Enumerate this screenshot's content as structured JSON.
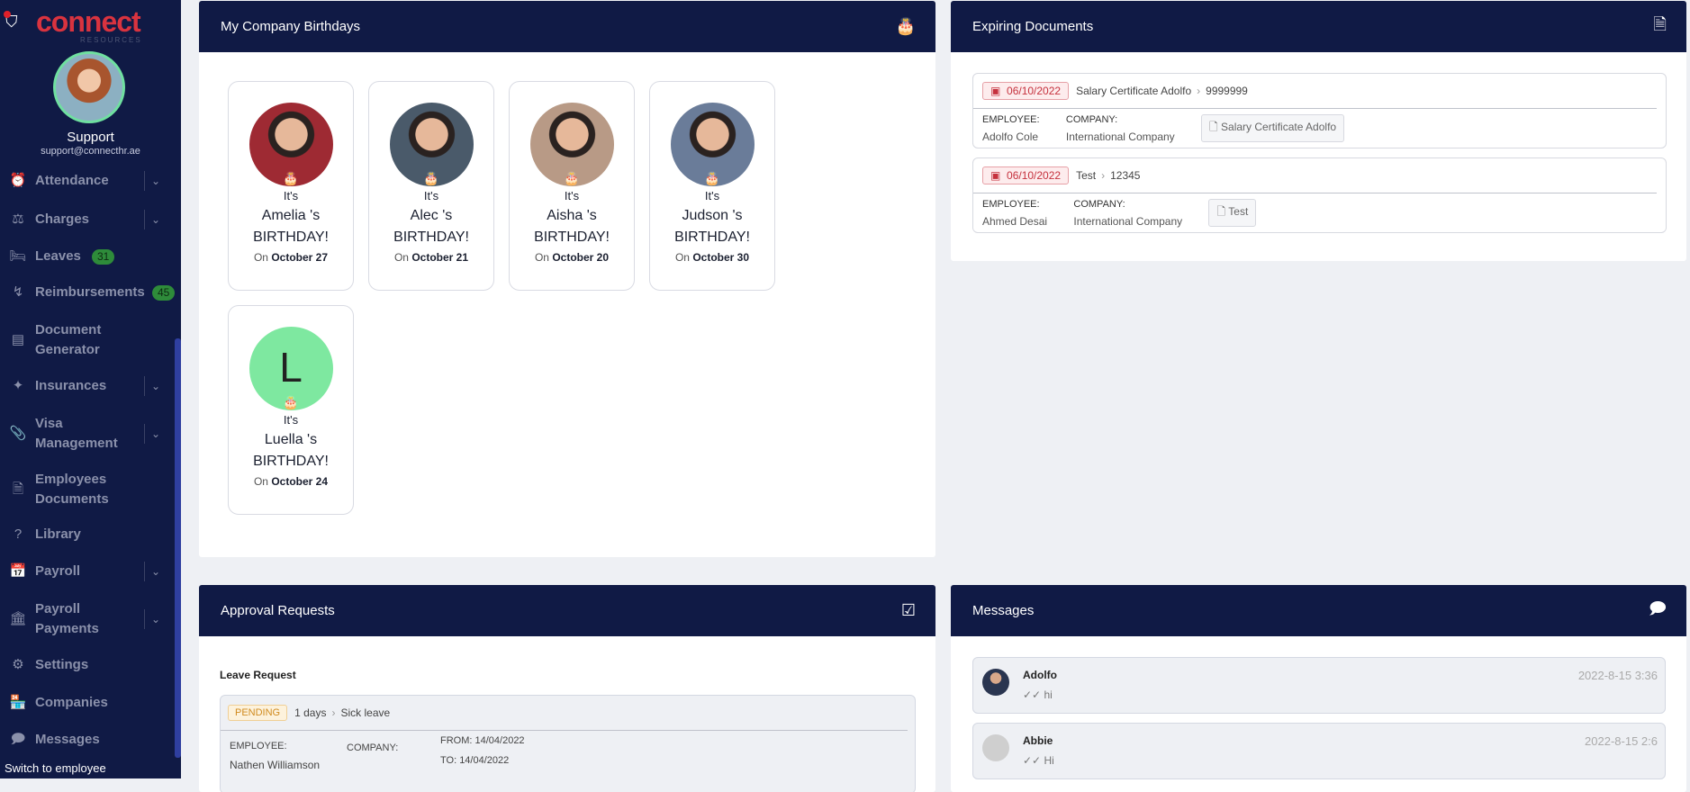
{
  "sidebar": {
    "logo": "connect",
    "logo_sub": "RESOURCES",
    "user_name": "Support",
    "user_email": "support@connecthr.ae",
    "items": [
      {
        "label": "Attendance",
        "icon": "alarm-clock-icon",
        "chevron": true
      },
      {
        "label": "Charges",
        "icon": "charges-icon",
        "chevron": true
      },
      {
        "label": "Leaves",
        "icon": "bed-icon",
        "badge": "31"
      },
      {
        "label": "Reimbursements",
        "icon": "reimburse-icon",
        "badge": "45"
      },
      {
        "label": "Document Generator",
        "icon": "layout-icon"
      },
      {
        "label": "Insurances",
        "icon": "insurance-icon",
        "chevron": true
      },
      {
        "label": "Visa Management",
        "icon": "paperclip-icon",
        "chevron": true
      },
      {
        "label": "Employees Documents",
        "icon": "document-icon"
      },
      {
        "label": "Library",
        "icon": "help-circle-icon"
      },
      {
        "label": "Payroll",
        "icon": "calendar-check-icon",
        "chevron": true
      },
      {
        "label": "Payroll Payments",
        "icon": "bank-icon",
        "chevron": true
      },
      {
        "label": "Settings",
        "icon": "gear-icon"
      },
      {
        "label": "Companies",
        "icon": "store-icon"
      },
      {
        "label": "Messages",
        "icon": "message-icon"
      }
    ],
    "switch_label": "Switch to employee"
  },
  "birthdays": {
    "title": "My Company Birthdays",
    "icon": "cake-icon",
    "its": "It's",
    "suffix": "'s",
    "birthday": "BIRTHDAY!",
    "on": "On",
    "people": [
      {
        "name": "Amelia",
        "date": "October 27",
        "color": "#9e2a33"
      },
      {
        "name": "Alec",
        "date": "October 21",
        "color": "#4a5a6a"
      },
      {
        "name": "Aisha",
        "date": "October 20",
        "color": "#b89a86"
      },
      {
        "name": "Judson",
        "date": "October 30",
        "color": "#6a7c99"
      },
      {
        "name": "Luella",
        "date": "October 24",
        "initial": "L",
        "color": "#7ee8a0"
      }
    ]
  },
  "expiring": {
    "title": "Expiring Documents",
    "icon": "file-x-icon",
    "employee_label": "EMPLOYEE:",
    "company_label": "COMPANY:",
    "items": [
      {
        "date": "06/10/2022",
        "doc": "Salary Certificate Adolfo",
        "number": "9999999",
        "employee": "Adolfo Cole",
        "company": "International Company",
        "file": "Salary Certificate Adolfo"
      },
      {
        "date": "06/10/2022",
        "doc": "Test",
        "number": "12345",
        "employee": "Ahmed Desai",
        "company": "International Company",
        "file": "Test"
      }
    ]
  },
  "approvals": {
    "title": "Approval Requests",
    "icon": "clipboard-check-icon",
    "section": "Leave Request",
    "request": {
      "status": "PENDING",
      "days": "1 days",
      "type": "Sick leave",
      "employee_label": "EMPLOYEE:",
      "employee": "Nathen Williamson",
      "company_label": "COMPANY:",
      "from": "FROM: 14/04/2022",
      "to": "TO: 14/04/2022"
    }
  },
  "messages": {
    "title": "Messages",
    "icon": "message-icon",
    "items": [
      {
        "name": "Adolfo",
        "text": "hi",
        "time": "2022-8-15 3:36"
      },
      {
        "name": "Abbie",
        "text": "Hi",
        "time": "2022-8-15 2:6"
      }
    ]
  }
}
